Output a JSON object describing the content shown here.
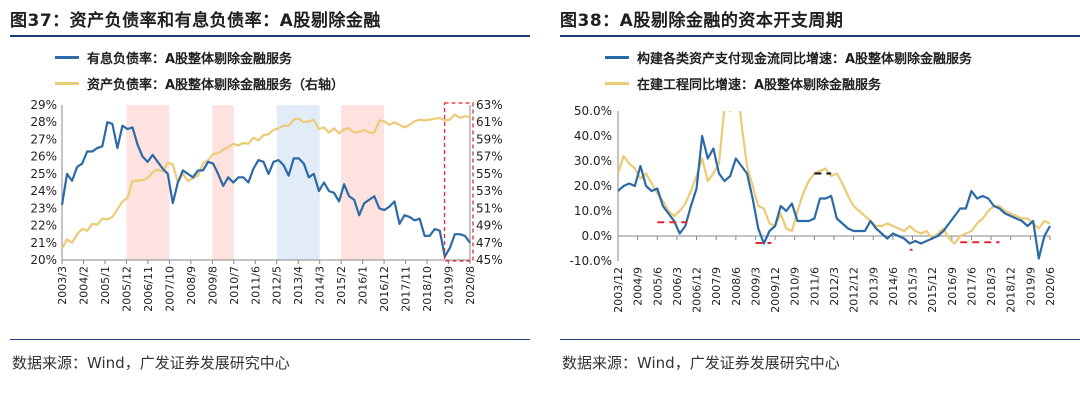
{
  "colors": {
    "blue": "#2b6aa6",
    "gold": "#ecca76",
    "shade_pink": "#fde2df",
    "shade_blue": "#e2ecf9",
    "red_dash": "#e0282e",
    "black_dash": "#111111",
    "rule": "#1d3f7c"
  },
  "left": {
    "title": "图37：资产负债率和有息负债率：A股剔除金融",
    "source": "数据来源：Wind，广发证券发展研究中心",
    "legend": [
      {
        "label": "有息负债率：A股整体剔除金融服务",
        "color": "#2b6aa6"
      },
      {
        "label": "资产负债率：A股整体剔除金融服务（右轴）",
        "color": "#ecca76"
      }
    ]
  },
  "right": {
    "title": "图38：A股剔除金融的资本开支周期",
    "source": "数据来源：Wind，广发证券发展研究中心",
    "legend": [
      {
        "label": "构建各类资产支付现金流同比增速：A股整体剔除金融服务",
        "color": "#2b6aa6"
      },
      {
        "label": "在建工程同比增速：A股整体剔除金融服务",
        "color": "#ecca76"
      }
    ]
  },
  "chart_data": [
    {
      "type": "line",
      "x_tick_labels": [
        "2003/3",
        "2004/2",
        "2005/1",
        "2005/12",
        "2006/11",
        "2007/10",
        "2008/9",
        "2009/8",
        "2010/7",
        "2011/6",
        "2012/5",
        "2013/4",
        "2014/3",
        "2015/2",
        "2016/1",
        "2016/12",
        "2017/11",
        "2018/10",
        "2019/9",
        "2020/8"
      ],
      "ylim_left": [
        0.2,
        0.29
      ],
      "ylim_right": [
        0.45,
        0.63
      ],
      "y_tick_labels_left": [
        "20%",
        "21%",
        "22%",
        "23%",
        "24%",
        "25%",
        "26%",
        "27%",
        "28%",
        "29%"
      ],
      "y_tick_labels_right": [
        "45%",
        "47%",
        "49%",
        "51%",
        "53%",
        "55%",
        "57%",
        "59%",
        "61%",
        "63%"
      ],
      "shaded_periods": [
        {
          "from": "2005/12",
          "to": "2007/10",
          "color": "pink"
        },
        {
          "from": "2009/8",
          "to": "2010/7",
          "color": "pink"
        },
        {
          "from": "2012/5",
          "to": "2014/3",
          "color": "blue"
        },
        {
          "from": "2015/2",
          "to": "2016/12",
          "color": "pink"
        }
      ],
      "highlight_box": {
        "from": "2019/9",
        "to": "2020/8"
      },
      "series": [
        {
          "name": "有息负债率：A股整体剔除金融服务",
          "axis": "left",
          "values": [
            0.232,
            0.25,
            0.246,
            0.254,
            0.256,
            0.263,
            0.263,
            0.265,
            0.266,
            0.28,
            0.279,
            0.265,
            0.278,
            0.276,
            0.277,
            0.267,
            0.26,
            0.257,
            0.261,
            0.257,
            0.253,
            0.25,
            0.233,
            0.245,
            0.252,
            0.25,
            0.248,
            0.252,
            0.252,
            0.257,
            0.256,
            0.25,
            0.243,
            0.248,
            0.245,
            0.248,
            0.248,
            0.245,
            0.253,
            0.258,
            0.257,
            0.25,
            0.257,
            0.258,
            0.255,
            0.249,
            0.259,
            0.259,
            0.256,
            0.248,
            0.25,
            0.24,
            0.245,
            0.24,
            0.239,
            0.234,
            0.244,
            0.237,
            0.235,
            0.226,
            0.233,
            0.235,
            0.237,
            0.23,
            0.229,
            0.231,
            0.234,
            0.221,
            0.226,
            0.225,
            0.223,
            0.224,
            0.214,
            0.214,
            0.218,
            0.217,
            0.202,
            0.207,
            0.215,
            0.215,
            0.214,
            0.21
          ]
        },
        {
          "name": "资产负债率：A股整体剔除金融服务（右轴）",
          "axis": "right",
          "values": [
            0.463,
            0.474,
            0.47,
            0.48,
            0.486,
            0.484,
            0.492,
            0.491,
            0.498,
            0.497,
            0.5,
            0.509,
            0.518,
            0.522,
            0.542,
            0.542,
            0.543,
            0.545,
            0.552,
            0.555,
            0.553,
            0.563,
            0.561,
            0.54,
            0.55,
            0.542,
            0.545,
            0.548,
            0.562,
            0.566,
            0.573,
            0.574,
            0.578,
            0.581,
            0.585,
            0.583,
            0.586,
            0.585,
            0.592,
            0.589,
            0.595,
            0.596,
            0.601,
            0.603,
            0.606,
            0.606,
            0.613,
            0.614,
            0.61,
            0.611,
            0.613,
            0.602,
            0.604,
            0.598,
            0.603,
            0.597,
            0.602,
            0.603,
            0.598,
            0.599,
            0.601,
            0.598,
            0.598,
            0.612,
            0.611,
            0.607,
            0.61,
            0.607,
            0.604,
            0.607,
            0.611,
            0.613,
            0.612,
            0.613,
            0.614,
            0.615,
            0.612,
            0.613,
            0.619,
            0.615,
            0.617,
            0.616
          ]
        }
      ]
    },
    {
      "type": "line",
      "x_tick_labels": [
        "2003/12",
        "2004/9",
        "2005/6",
        "2006/3",
        "2006/12",
        "2007/9",
        "2008/6",
        "2009/3",
        "2009/12",
        "2010/9",
        "2011/6",
        "2012/3",
        "2012/12",
        "2013/9",
        "2014/6",
        "2015/3",
        "2015/12",
        "2016/9",
        "2017/6",
        "2018/3",
        "2018/12",
        "2019/9",
        "2020/6"
      ],
      "ylim": [
        -0.1,
        0.5
      ],
      "y_tick_labels": [
        "-10.0%",
        "0.0%",
        "10.0%",
        "20.0%",
        "30.0%",
        "40.0%",
        "50.0%"
      ],
      "dashed_levels": [
        {
          "from": "2005/6",
          "to": "2007/1",
          "y": 0.055,
          "color": "red"
        },
        {
          "from": "2009/3",
          "to": "2010/10",
          "y": -0.028,
          "color": "red"
        },
        {
          "from": "2011/6",
          "to": "2013/6",
          "y": 0.25,
          "color": "black"
        },
        {
          "from": "2015/3",
          "to": "2016/12",
          "y": -0.055,
          "color": "red"
        },
        {
          "from": "2019/3",
          "to": "2020/12",
          "y": -0.025,
          "color": "red"
        }
      ],
      "series": [
        {
          "name": "构建各类资产支付现金流同比增速：A股整体剔除金融服务",
          "values": [
            0.18,
            0.2,
            0.21,
            0.2,
            0.28,
            0.2,
            0.18,
            0.19,
            0.12,
            0.09,
            0.06,
            0.01,
            0.04,
            0.12,
            0.19,
            0.4,
            0.31,
            0.35,
            0.25,
            0.22,
            0.24,
            0.31,
            0.28,
            0.25,
            0.15,
            0.03,
            -0.03,
            0.02,
            0.04,
            0.12,
            0.1,
            0.13,
            0.06,
            0.06,
            0.06,
            0.07,
            0.15,
            0.15,
            0.16,
            0.07,
            0.05,
            0.03,
            0.02,
            0.02,
            0.02,
            0.06,
            0.03,
            0.01,
            -0.01,
            0.01,
            0.0,
            -0.01,
            -0.03,
            -0.02,
            -0.03,
            -0.02,
            -0.01,
            0.0,
            0.02,
            0.05,
            0.08,
            0.11,
            0.11,
            0.18,
            0.15,
            0.16,
            0.15,
            0.12,
            0.11,
            0.09,
            0.08,
            0.07,
            0.06,
            0.04,
            0.06,
            -0.09,
            0.0,
            0.04
          ]
        },
        {
          "name": "在建工程同比增速：A股整体剔除金融服务",
          "values": [
            0.25,
            0.32,
            0.29,
            0.27,
            0.23,
            0.25,
            0.21,
            0.17,
            0.14,
            0.1,
            0.08,
            0.1,
            0.13,
            0.18,
            0.24,
            0.31,
            0.22,
            0.25,
            0.29,
            0.52,
            0.5,
            0.65,
            0.45,
            0.28,
            0.2,
            0.12,
            0.11,
            0.05,
            0.04,
            0.09,
            0.03,
            0.02,
            0.1,
            0.17,
            0.22,
            0.25,
            0.26,
            0.27,
            0.24,
            0.25,
            0.21,
            0.16,
            0.12,
            0.1,
            0.08,
            0.06,
            0.04,
            0.04,
            0.05,
            0.04,
            0.03,
            0.02,
            0.04,
            0.02,
            0.01,
            0.02,
            -0.01,
            0.01,
            0.03,
            -0.01,
            -0.03,
            0.0,
            0.01,
            0.02,
            0.05,
            0.07,
            0.1,
            0.12,
            0.12,
            0.1,
            0.09,
            0.08,
            0.07,
            0.07,
            0.05,
            0.03,
            0.06,
            0.05
          ]
        }
      ]
    }
  ]
}
